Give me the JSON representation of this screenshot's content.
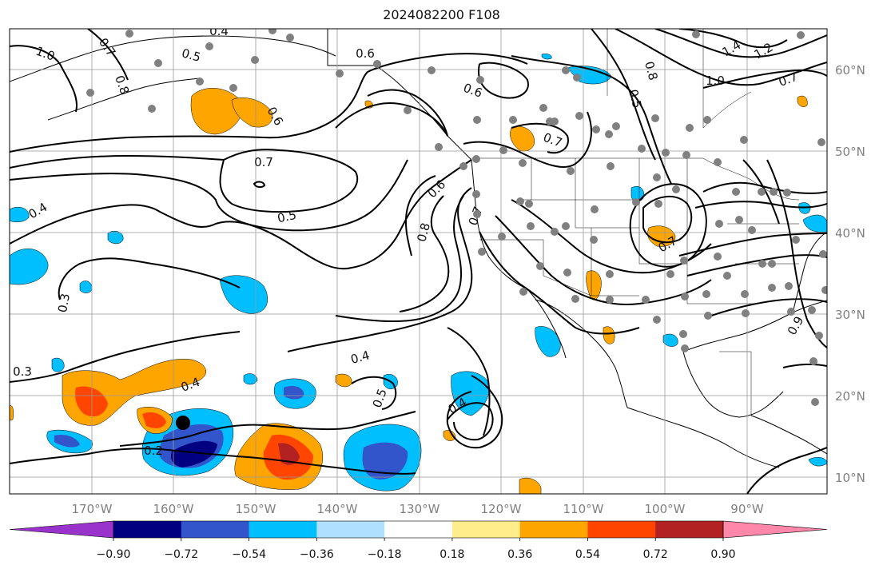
{
  "title": "2024082200 F108",
  "lat_labels": [
    "60°N",
    "50°N",
    "40°N",
    "30°N",
    "20°N",
    "10°N"
  ],
  "lon_labels": [
    "170°W",
    "160°W",
    "150°W",
    "140°W",
    "130°W",
    "120°W",
    "110°W",
    "100°W",
    "90°W"
  ],
  "colorbar": {
    "colors": [
      "#9933cc",
      "#000080",
      "#3355cc",
      "#00bfff",
      "#b0e0ff",
      "#ffffff",
      "#ffec8b",
      "#ffa500",
      "#ff4500",
      "#b22222",
      "#ff88aa"
    ],
    "tick_labels": [
      "−0.90",
      "−0.72",
      "−0.54",
      "−0.36",
      "−0.18",
      "0.18",
      "0.36",
      "0.54",
      "0.72",
      "0.90"
    ]
  },
  "contour_labels": [
    "1.0",
    "0.7",
    "0.8",
    "0.5",
    "0.4",
    "0.6",
    "0.6",
    "0.6",
    "0.7",
    "0.5",
    "0.4",
    "0.6",
    "0.8",
    "0.7",
    "0.8",
    "0.5",
    "1.4",
    "1.2",
    "1.0",
    "0.7",
    "0.4",
    "0.3",
    "0.3",
    "0.2",
    "0.4",
    "0.5",
    "0.4",
    "0.7",
    "0.7",
    "0.9"
  ],
  "colors": {
    "land_line": "#000000",
    "grid": "#aaaaaa",
    "contour": "#000000",
    "station_dot": "#808080"
  }
}
